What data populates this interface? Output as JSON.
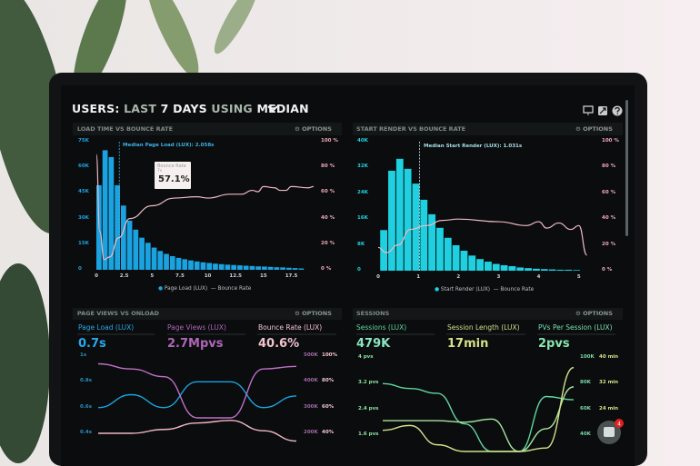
{
  "header": {
    "title_parts": [
      "USERS:",
      "LAST",
      "7 DAYS",
      "USING",
      "MEDIAN"
    ],
    "dropdown_icon": "chevron-down-icon",
    "toolbar_icons": [
      "monitor-icon",
      "share-icon",
      "help-icon"
    ]
  },
  "options_label": "OPTIONS",
  "colors": {
    "blue": "#1aa3e0",
    "cyan": "#1fd0e0",
    "pink": "#f0b8c4",
    "purple": "#c070c8",
    "green": "#5fd6a0",
    "yellow": "#d6e08a",
    "badge": "#e02020"
  },
  "panels": {
    "load_time": {
      "title": "LOAD TIME VS BOUNCE RATE",
      "median_label": "Median Page Load (LUX): 2.058s",
      "tooltip": {
        "label": "Bounce Rate",
        "sub": "7s",
        "value": "57.1%"
      },
      "legend": [
        "Page Load (LUX)",
        "Bounce Rate"
      ]
    },
    "start_render": {
      "title": "START RENDER VS BOUNCE RATE",
      "median_label": "Median Start Render (LUX): 1.031s",
      "legend": [
        "Start Render (LUX)",
        "Bounce Rate"
      ]
    },
    "page_views": {
      "title": "PAGE VIEWS VS ONLOAD",
      "metrics": [
        {
          "label": "Page Load (LUX)",
          "value": "0.7s"
        },
        {
          "label": "Page Views (LUX)",
          "value": "2.7Mpvs"
        },
        {
          "label": "Bounce Rate (LUX)",
          "value": "40.6%"
        }
      ]
    },
    "sessions": {
      "title": "SESSIONS",
      "metrics": [
        {
          "label": "Sessions (LUX)",
          "value": "479K"
        },
        {
          "label": "Session Length (LUX)",
          "value": "17min"
        },
        {
          "label": "PVs Per Session (LUX)",
          "value": "2pvs"
        }
      ]
    }
  },
  "chat": {
    "badge_count": "4"
  },
  "chart_data": [
    {
      "type": "bar",
      "title": "LOAD TIME VS BOUNCE RATE",
      "x_ticks": [
        "0",
        "2.5",
        "5",
        "7.5",
        "10",
        "12.5",
        "15",
        "17.5"
      ],
      "y_ticks": [
        "0",
        "15K",
        "30K",
        "45K",
        "60K",
        "75K"
      ],
      "y2_ticks": [
        "0 %",
        "20 %",
        "40 %",
        "60 %",
        "80 %",
        "100 %"
      ],
      "xlim": [
        0,
        19.5
      ],
      "ylim": [
        0,
        75000
      ],
      "y2lim": [
        0,
        100
      ],
      "median_x": 2.058,
      "bins_start": 0,
      "bin_width": 0.55,
      "series": [
        {
          "name": "Page Load (LUX)",
          "type": "bar",
          "values": [
            49500,
            70000,
            66000,
            49500,
            37600,
            28800,
            23500,
            18800,
            15800,
            13000,
            11000,
            9300,
            8000,
            7000,
            6200,
            5500,
            4900,
            4400,
            4000,
            3600,
            3300,
            3000,
            2800,
            2600,
            2400,
            2200,
            2000,
            1900,
            1700,
            1500,
            1400,
            1200,
            1000,
            800
          ]
        },
        {
          "name": "Bounce Rate",
          "type": "line",
          "x": [
            0,
            0.3,
            0.7,
            1.2,
            2,
            3,
            5,
            7,
            9,
            10,
            12,
            13,
            14,
            14.5,
            15,
            16,
            16.5,
            17,
            17.5,
            19,
            19.5
          ],
          "values": [
            90,
            30,
            8,
            10,
            25,
            40,
            50,
            56,
            57,
            56,
            59,
            59,
            62,
            61,
            65,
            64,
            62,
            62,
            65,
            64,
            65
          ]
        }
      ]
    },
    {
      "type": "bar",
      "title": "START RENDER VS BOUNCE RATE",
      "x_ticks": [
        "0",
        "1",
        "2",
        "3",
        "4",
        "5"
      ],
      "y_ticks": [
        "0",
        "8K",
        "16K",
        "24K",
        "32K",
        "40K"
      ],
      "y2_ticks": [
        "0 %",
        "20 %",
        "40 %",
        "60 %",
        "80 %",
        "100 %"
      ],
      "xlim": [
        0,
        5.3
      ],
      "ylim": [
        0,
        40000
      ],
      "y2lim": [
        0,
        100
      ],
      "median_x": 1.031,
      "bins_start": 0.05,
      "bin_width": 0.2,
      "series": [
        {
          "name": "Start Render (LUX)",
          "type": "bar",
          "values": [
            12600,
            31000,
            34700,
            31600,
            27000,
            22000,
            17500,
            13300,
            10200,
            7900,
            6200,
            4700,
            3600,
            2800,
            2100,
            1700,
            1400,
            1000,
            800,
            600,
            500,
            400,
            300,
            300,
            200
          ]
        },
        {
          "name": "Bounce Rate",
          "type": "line",
          "x": [
            0,
            0.2,
            0.5,
            0.8,
            1.2,
            1.6,
            2,
            3,
            3.7,
            4,
            4.2,
            4.5,
            4.8,
            5,
            5.2
          ],
          "values": [
            18,
            14,
            20,
            32,
            35,
            39,
            40,
            38,
            35,
            38,
            33,
            37,
            32,
            35,
            12
          ]
        }
      ]
    },
    {
      "type": "line",
      "title": "PAGE VIEWS VS ONLOAD",
      "y_ticks": [
        "0.4s",
        "0.6s",
        "0.8s",
        "1s"
      ],
      "y2_ticks": [
        "200K",
        "300K",
        "400K",
        "500K"
      ],
      "y3_ticks": [
        "40%",
        "60%",
        "80%",
        "100%"
      ],
      "series": [
        {
          "name": "Page Load (LUX)",
          "axis": "s",
          "values": [
            0.6,
            0.7,
            0.6,
            0.8,
            0.8,
            0.6,
            0.69
          ]
        },
        {
          "name": "Page Views (LUX)",
          "axis": "pv",
          "values": [
            470000,
            450000,
            420000,
            260000,
            260000,
            450000,
            460000
          ]
        },
        {
          "name": "Bounce Rate (LUX)",
          "axis": "pct",
          "values": [
            40,
            40,
            43,
            48,
            50,
            42,
            34
          ]
        }
      ]
    },
    {
      "type": "line",
      "title": "SESSIONS",
      "y_ticks": [
        "1.6 pvs",
        "2.4 pvs",
        "3.2 pvs",
        "4 pvs"
      ],
      "y2_ticks": [
        "40K",
        "60K",
        "80K",
        "100K"
      ],
      "y3_ticks": [
        "24 min",
        "32 min",
        "40 min"
      ],
      "series": [
        {
          "name": "Sessions (LUX)",
          "values": [
            3.2,
            3.05,
            2.9,
            1.95,
            0.6,
            0.6,
            2.8,
            2.7
          ]
        },
        {
          "name": "Session Length (LUX)",
          "values": [
            2.05,
            2.05,
            2.05,
            2.0,
            2.1,
            0.6,
            1.8,
            3.1
          ]
        },
        {
          "name": "PVs Per Session (LUX)",
          "values": [
            1.75,
            1.9,
            1.3,
            0.6,
            0.6,
            0.6,
            1.2,
            3.7
          ]
        }
      ]
    }
  ]
}
